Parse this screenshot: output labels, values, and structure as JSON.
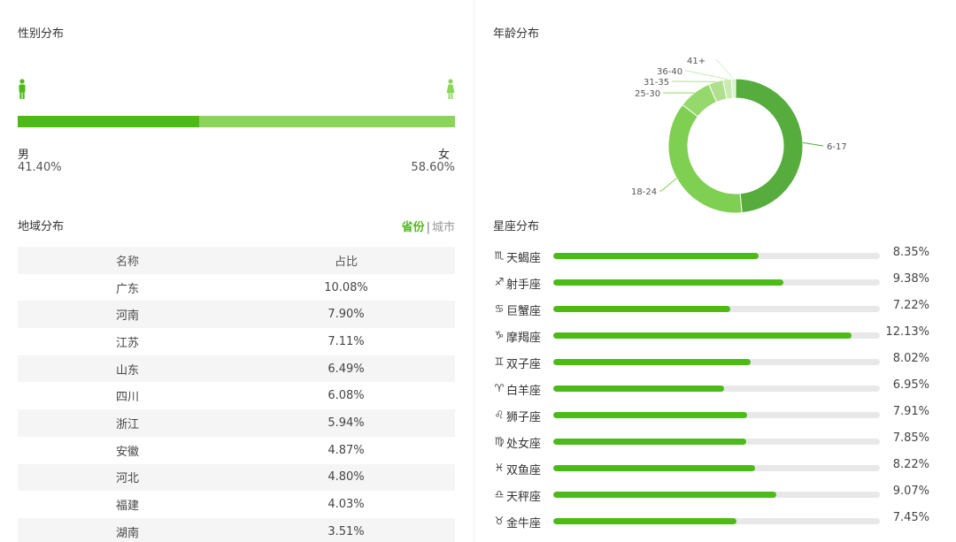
{
  "gender": {
    "title": "性别分布",
    "male_label": "男",
    "male_value": "41.40%",
    "male_fraction": 0.414,
    "female_label": "女",
    "female_value": "58.60%",
    "male_icon": "male-person-icon",
    "female_icon": "female-person-icon",
    "colors": {
      "male": "#4cbb17",
      "female": "#8bd65a"
    }
  },
  "age": {
    "title": "年龄分布",
    "segments": [
      {
        "label": "6-17",
        "value": 48.5,
        "color": "#57ac3e"
      },
      {
        "label": "18-24",
        "value": 37.0,
        "color": "#7fcf52"
      },
      {
        "label": "25-30",
        "value": 8.0,
        "color": "#95d86c"
      },
      {
        "label": "31-35",
        "value": 3.5,
        "color": "#b0e08e"
      },
      {
        "label": "36-40",
        "value": 2.0,
        "color": "#c8ebb0"
      },
      {
        "label": "41+",
        "value": 1.0,
        "color": "#dcf2cc"
      }
    ]
  },
  "region": {
    "title": "地域分布",
    "tab_province": "省份",
    "separator": "|",
    "tab_city": "城市",
    "headers": [
      "名称",
      "占比"
    ],
    "rows": [
      [
        "广东",
        "10.08%"
      ],
      [
        "河南",
        "7.90%"
      ],
      [
        "江苏",
        "7.11%"
      ],
      [
        "山东",
        "6.49%"
      ],
      [
        "四川",
        "6.08%"
      ],
      [
        "浙江",
        "5.94%"
      ],
      [
        "安徽",
        "4.87%"
      ],
      [
        "河北",
        "4.80%"
      ],
      [
        "福建",
        "4.03%"
      ],
      [
        "湖南",
        "3.51%"
      ]
    ]
  },
  "constellation": {
    "title": "星座分布",
    "items": [
      {
        "symbol": "♏",
        "icon": "scorpio-icon",
        "name": "天蝎座",
        "value": "8.35%",
        "pct": 8.35
      },
      {
        "symbol": "♐",
        "icon": "sagittarius-icon",
        "name": "射手座",
        "value": "9.38%",
        "pct": 9.38
      },
      {
        "symbol": "♋",
        "icon": "cancer-icon",
        "name": "巨蟹座",
        "value": "7.22%",
        "pct": 7.22
      },
      {
        "symbol": "♑",
        "icon": "capricorn-icon",
        "name": "摩羯座",
        "value": "12.13%",
        "pct": 12.13
      },
      {
        "symbol": "♊",
        "icon": "gemini-icon",
        "name": "双子座",
        "value": "8.02%",
        "pct": 8.02
      },
      {
        "symbol": "♈",
        "icon": "aries-icon",
        "name": "白羊座",
        "value": "6.95%",
        "pct": 6.95
      },
      {
        "symbol": "♌",
        "icon": "leo-icon",
        "name": "狮子座",
        "value": "7.91%",
        "pct": 7.91
      },
      {
        "symbol": "♍",
        "icon": "virgo-icon",
        "name": "处女座",
        "value": "7.85%",
        "pct": 7.85
      },
      {
        "symbol": "♓",
        "icon": "pisces-icon",
        "name": "双鱼座",
        "value": "8.22%",
        "pct": 8.22
      },
      {
        "symbol": "♎",
        "icon": "libra-icon",
        "name": "天秤座",
        "value": "9.07%",
        "pct": 9.07
      },
      {
        "symbol": "♉",
        "icon": "taurus-icon",
        "name": "金牛座",
        "value": "7.45%",
        "pct": 7.45
      }
    ],
    "scale_max": 13.3,
    "bar_color": "#4cbb17",
    "track_color": "#e8e8e8"
  }
}
